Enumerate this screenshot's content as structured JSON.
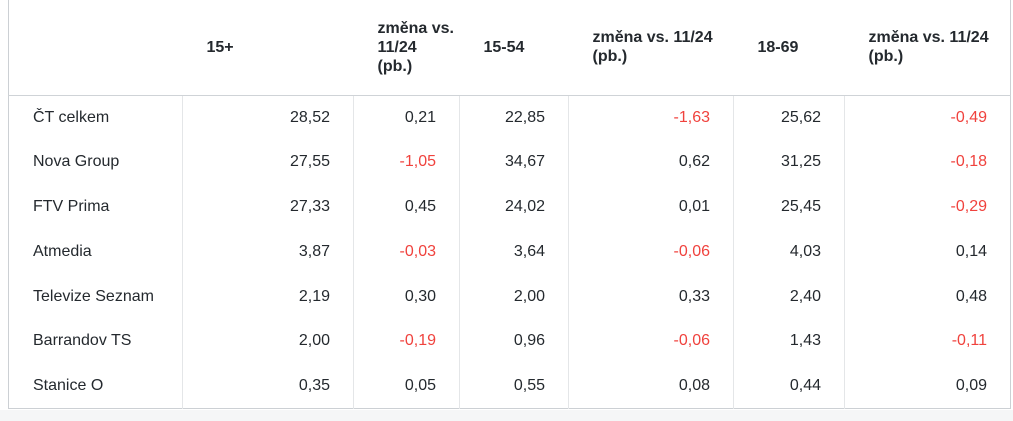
{
  "colors": {
    "negative_value": "#f0423d",
    "text": "#24292e",
    "border_outer": "#ccd0d4",
    "border_inner": "#e4e6e8",
    "page_strip": "#f5f6f7"
  },
  "chart_data": {
    "type": "table",
    "columns": [
      "",
      "15+",
      "změna vs.\n11/24\n(pb.)",
      "15-54",
      "změna vs. 11/24\n(pb.)",
      "18-69",
      "změna vs. 11/24\n(pb.)"
    ],
    "rows": [
      {
        "label": "ČT celkem",
        "values": [
          "28,52",
          "0,21",
          "22,85",
          "-1,63",
          "25,62",
          "-0,49"
        ]
      },
      {
        "label": "Nova Group",
        "values": [
          "27,55",
          "-1,05",
          "34,67",
          "0,62",
          "31,25",
          "-0,18"
        ]
      },
      {
        "label": "FTV Prima",
        "values": [
          "27,33",
          "0,45",
          "24,02",
          "0,01",
          "25,45",
          "-0,29"
        ]
      },
      {
        "label": "Atmedia",
        "values": [
          "3,87",
          "-0,03",
          "3,64",
          "-0,06",
          "4,03",
          "0,14"
        ]
      },
      {
        "label": "Televize Seznam",
        "values": [
          "2,19",
          "0,30",
          "2,00",
          "0,33",
          "2,40",
          "0,48"
        ]
      },
      {
        "label": "Barrandov TS",
        "values": [
          "2,00",
          "-0,19",
          "0,96",
          "-0,06",
          "1,43",
          "-0,11"
        ]
      },
      {
        "label": "Stanice O",
        "values": [
          "0,35",
          "0,05",
          "0,55",
          "0,08",
          "0,44",
          "0,09"
        ]
      }
    ]
  }
}
